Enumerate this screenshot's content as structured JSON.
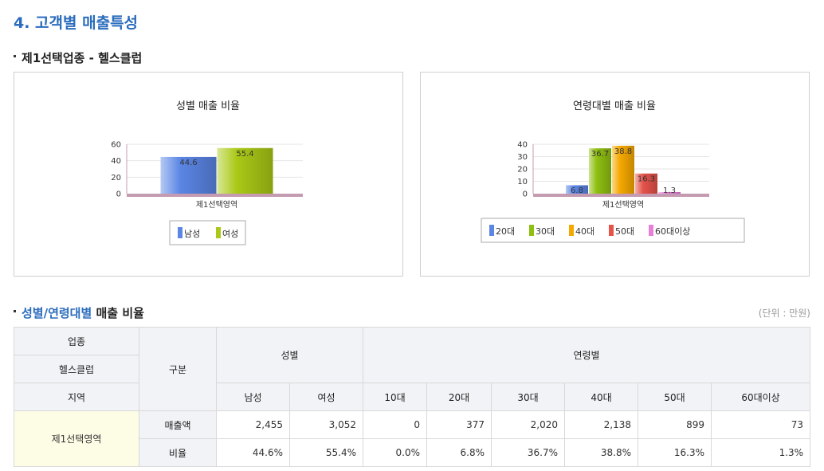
{
  "section_title": "4. 고객별 매출특성",
  "subsection1": {
    "title": "제1선택업종 - 헬스클럽"
  },
  "subsection2": {
    "title_blue": "성별/연령대별",
    "title_rest": " 매출 비율",
    "unit_note": "(단위 : 만원)"
  },
  "colors": {
    "남성": "#5b86e5",
    "여성": "#a9c916",
    "20대": "#5b86e5",
    "30대": "#8fbf10",
    "40대": "#f5a800",
    "50대": "#e5534b",
    "60대이상": "#e87fd9",
    "axis_floor": "#c49bb1",
    "title_blue": "#2b6cbd"
  },
  "chart_data": [
    {
      "type": "bar",
      "title": "성별 매출 비율",
      "categories": [
        "제1선택영역"
      ],
      "series": [
        {
          "name": "남성",
          "values": [
            44.6
          ]
        },
        {
          "name": "여성",
          "values": [
            55.4
          ]
        }
      ],
      "ylim": [
        0,
        60
      ],
      "yticks": [
        0,
        20,
        40,
        60
      ],
      "legend": "bottom"
    },
    {
      "type": "bar",
      "title": "연령대별 매출 비율",
      "categories": [
        "제1선택영역"
      ],
      "series": [
        {
          "name": "20대",
          "values": [
            6.8
          ]
        },
        {
          "name": "30대",
          "values": [
            36.7
          ]
        },
        {
          "name": "40대",
          "values": [
            38.8
          ]
        },
        {
          "name": "50대",
          "values": [
            16.3
          ]
        },
        {
          "name": "60대이상",
          "values": [
            1.3
          ]
        }
      ],
      "ylim": [
        0,
        40
      ],
      "yticks": [
        0,
        10,
        20,
        30,
        40
      ],
      "legend": "bottom"
    }
  ],
  "table": {
    "header": {
      "industry_label": "업종",
      "industry_value": "헬스클럽",
      "region_label": "지역",
      "division": "구분",
      "gender_group": "성별",
      "age_group": "연령별"
    },
    "columns": [
      "남성",
      "여성",
      "10대",
      "20대",
      "30대",
      "40대",
      "50대",
      "60대이상"
    ],
    "region": "제1선택영역",
    "rows": [
      {
        "label": "매출액",
        "values": [
          "2,455",
          "3,052",
          "0",
          "377",
          "2,020",
          "2,138",
          "899",
          "73"
        ]
      },
      {
        "label": "비율",
        "values": [
          "44.6%",
          "55.4%",
          "0.0%",
          "6.8%",
          "36.7%",
          "38.8%",
          "16.3%",
          "1.3%"
        ]
      }
    ]
  }
}
